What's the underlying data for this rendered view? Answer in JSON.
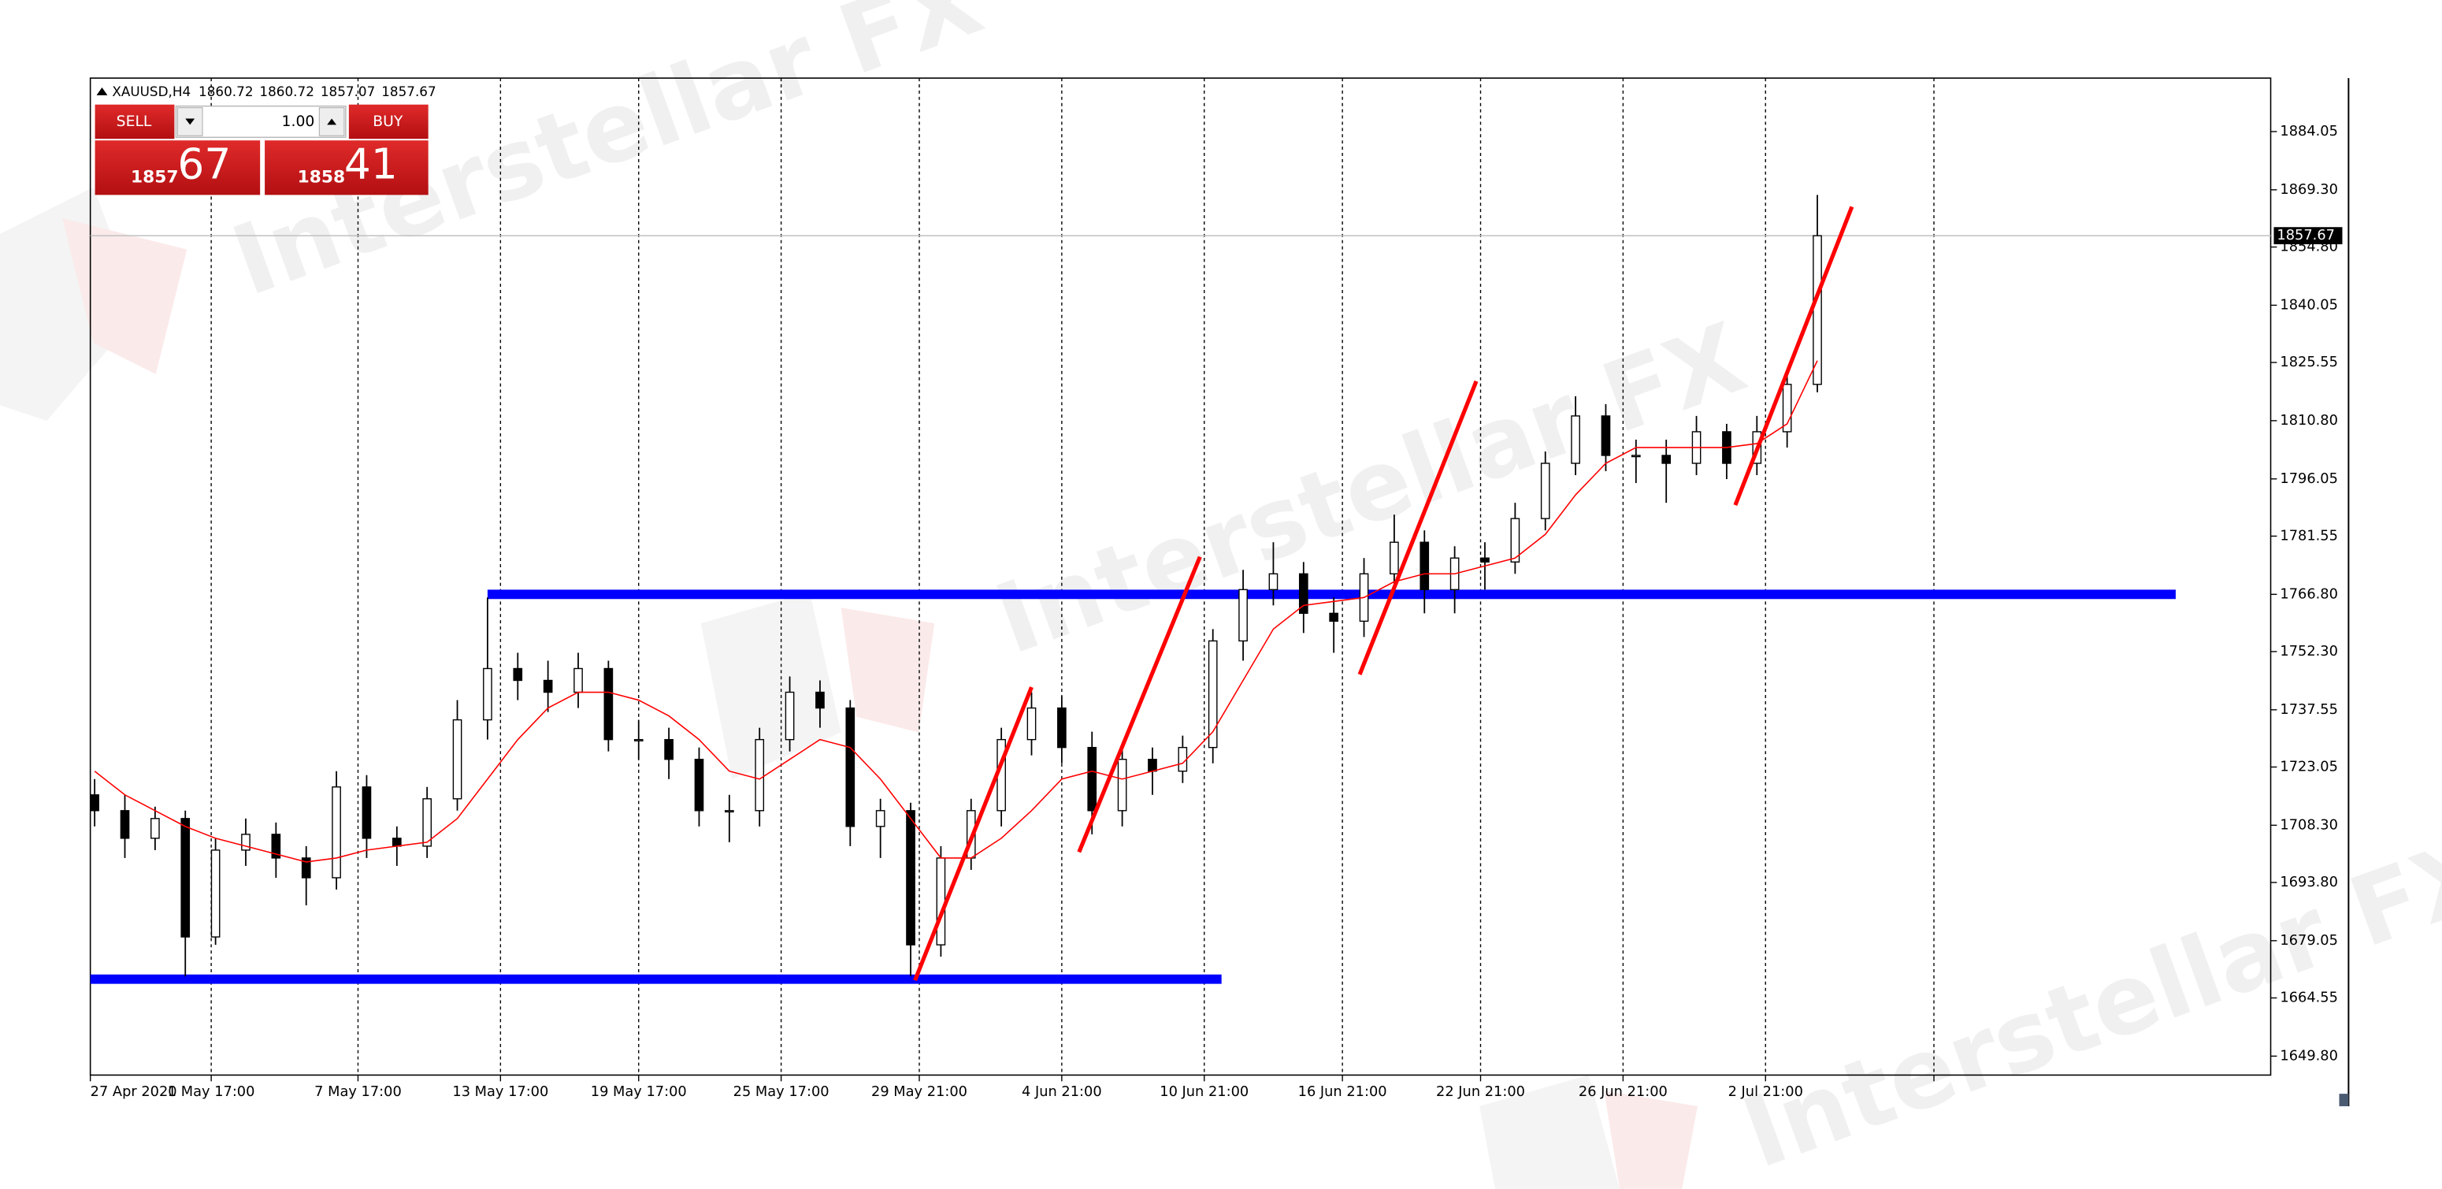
{
  "chart_data": {
    "type": "candlestick",
    "watermark": "Interstellar FX",
    "header": {
      "symbol": "XAUUSD,H4",
      "values": [
        1860.72,
        1860.72,
        1857.07,
        1857.67
      ]
    },
    "trade_panel": {
      "sell": "SELL",
      "buy": "BUY",
      "lot": "1.00",
      "sell_big": "1857",
      "sell_small": "67",
      "buy_big": "1858",
      "buy_small": "41"
    },
    "xlim": [
      0,
      505
    ],
    "xticks": [
      {
        "value": 0,
        "label": "27 Apr 2020"
      },
      {
        "value": 28,
        "label": "1 May 17:00"
      },
      {
        "value": 62,
        "label": "7 May 17:00"
      },
      {
        "value": 95,
        "label": "13 May 17:00"
      },
      {
        "value": 127,
        "label": "19 May 17:00"
      },
      {
        "value": 160,
        "label": "25 May 17:00"
      },
      {
        "value": 192,
        "label": "29 May 21:00"
      },
      {
        "value": 225,
        "label": "4 Jun 21:00"
      },
      {
        "value": 258,
        "label": "10 Jun 21:00"
      },
      {
        "value": 290,
        "label": "16 Jun 21:00"
      },
      {
        "value": 322,
        "label": "22 Jun 21:00"
      },
      {
        "value": 355,
        "label": "26 Jun 21:00"
      },
      {
        "value": 388,
        "label": "2 Jul 21:00"
      },
      {
        "value": 427,
        "label": null
      }
    ],
    "ylim": [
      1645,
      1897.6
    ],
    "yticks": [
      {
        "value": 1649.8,
        "label": "1649.80"
      },
      {
        "value": 1664.55,
        "label": "1664.55"
      },
      {
        "value": 1679.05,
        "label": "1679.05"
      },
      {
        "value": 1693.8,
        "label": "1693.80"
      },
      {
        "value": 1708.3,
        "label": "1708.30"
      },
      {
        "value": 1723.05,
        "label": "1723.05"
      },
      {
        "value": 1737.55,
        "label": "1737.55"
      },
      {
        "value": 1752.3,
        "label": "1752.30"
      },
      {
        "value": 1766.8,
        "label": "1766.80"
      },
      {
        "value": 1781.55,
        "label": "1781.55"
      },
      {
        "value": 1796.05,
        "label": "1796.05"
      },
      {
        "value": 1810.8,
        "label": "1810.80"
      },
      {
        "value": 1825.55,
        "label": "1825.55"
      },
      {
        "value": 1840.05,
        "label": "1840.05"
      },
      {
        "value": 1854.8,
        "label": "1854.80"
      },
      {
        "value": 1869.3,
        "label": "1869.30"
      },
      {
        "value": 1884.05,
        "label": "1884.05"
      }
    ],
    "grid_x": true,
    "candle_color": "#000000",
    "x": [
      1,
      8,
      15,
      22,
      29,
      36,
      43,
      50,
      57,
      64,
      71,
      78,
      85,
      92,
      99,
      106,
      113,
      120,
      127,
      134,
      141,
      148,
      155,
      162,
      169,
      176,
      183,
      190,
      197,
      204,
      211,
      218,
      225,
      232,
      239,
      246,
      253,
      260,
      267,
      274,
      281,
      288,
      295,
      302,
      309,
      316,
      323,
      330,
      337,
      344,
      351,
      358,
      365,
      372,
      379,
      386,
      393,
      400
    ],
    "open": [
      1716,
      1712,
      1705,
      1710,
      1680,
      1702,
      1706,
      1700,
      1695,
      1718,
      1705,
      1703,
      1715,
      1735,
      1748,
      1745,
      1742,
      1748,
      1730,
      1730,
      1725,
      1712,
      1712,
      1730,
      1742,
      1738,
      1708,
      1712,
      1678,
      1700,
      1712,
      1730,
      1738,
      1728,
      1712,
      1725,
      1722,
      1728,
      1755,
      1768,
      1772,
      1762,
      1760,
      1772,
      1780,
      1768,
      1776,
      1775,
      1786,
      1800,
      1812,
      1802,
      1802,
      1800,
      1808,
      1800,
      1808,
      1820
    ],
    "high": [
      1720,
      1716,
      1713,
      1712,
      1705,
      1710,
      1709,
      1703,
      1722,
      1721,
      1708,
      1718,
      1740,
      1766,
      1752,
      1750,
      1752,
      1750,
      1735,
      1733,
      1728,
      1716,
      1733,
      1746,
      1745,
      1740,
      1715,
      1714,
      1703,
      1715,
      1733,
      1742,
      1741,
      1732,
      1728,
      1728,
      1731,
      1758,
      1773,
      1780,
      1775,
      1766,
      1776,
      1787,
      1783,
      1779,
      1780,
      1790,
      1803,
      1817,
      1815,
      1806,
      1806,
      1812,
      1810,
      1812,
      1823,
      1868
    ],
    "low": [
      1708,
      1700,
      1702,
      1670,
      1678,
      1698,
      1695,
      1688,
      1692,
      1700,
      1698,
      1700,
      1712,
      1730,
      1740,
      1737,
      1738,
      1727,
      1725,
      1720,
      1708,
      1704,
      1708,
      1727,
      1733,
      1703,
      1700,
      1670,
      1675,
      1697,
      1708,
      1726,
      1724,
      1706,
      1708,
      1716,
      1719,
      1724,
      1750,
      1764,
      1757,
      1752,
      1756,
      1768,
      1762,
      1762,
      1768,
      1772,
      1783,
      1797,
      1798,
      1795,
      1790,
      1797,
      1796,
      1797,
      1804,
      1818
    ],
    "close": [
      1712,
      1705,
      1710,
      1680,
      1702,
      1706,
      1700,
      1695,
      1718,
      1705,
      1703,
      1715,
      1735,
      1748,
      1745,
      1742,
      1748,
      1730,
      1730,
      1725,
      1712,
      1712,
      1730,
      1742,
      1738,
      1708,
      1712,
      1678,
      1700,
      1712,
      1730,
      1738,
      1728,
      1712,
      1725,
      1722,
      1728,
      1755,
      1768,
      1772,
      1762,
      1760,
      1772,
      1780,
      1768,
      1776,
      1775,
      1786,
      1800,
      1812,
      1802,
      1802,
      1800,
      1808,
      1800,
      1808,
      1820,
      1857.67
    ],
    "moving_average": {
      "color": "#ff0000",
      "values": [
        1722,
        1716,
        1712,
        1708,
        1705,
        1703,
        1701,
        1699,
        1700,
        1702,
        1703,
        1704,
        1710,
        1720,
        1730,
        1738,
        1742,
        1742,
        1740,
        1736,
        1730,
        1722,
        1720,
        1725,
        1730,
        1728,
        1720,
        1710,
        1700,
        1700,
        1705,
        1712,
        1720,
        1722,
        1720,
        1722,
        1724,
        1732,
        1745,
        1758,
        1764,
        1765,
        1766,
        1770,
        1772,
        1772,
        1774,
        1776,
        1782,
        1792,
        1800,
        1804,
        1804,
        1804,
        1804,
        1805,
        1810,
        1826
      ]
    },
    "trend_color": "#ff0000",
    "trend_lines": [
      {
        "x": [
          191,
          218
        ],
        "y": [
          1669,
          1743.3
        ]
      },
      {
        "x": [
          229,
          257
        ],
        "y": [
          1701.5,
          1776.3
        ]
      },
      {
        "x": [
          294,
          321
        ],
        "y": [
          1746.5,
          1820.8
        ]
      },
      {
        "x": [
          381,
          408
        ],
        "y": [
          1789.4,
          1865
        ]
      }
    ],
    "level_color": "#0000ff",
    "levels": [
      {
        "y": 1766.8,
        "x": [
          92,
          483
        ]
      },
      {
        "y": 1669.3,
        "x": [
          0,
          262
        ]
      }
    ],
    "current_price": 1857.67
  }
}
